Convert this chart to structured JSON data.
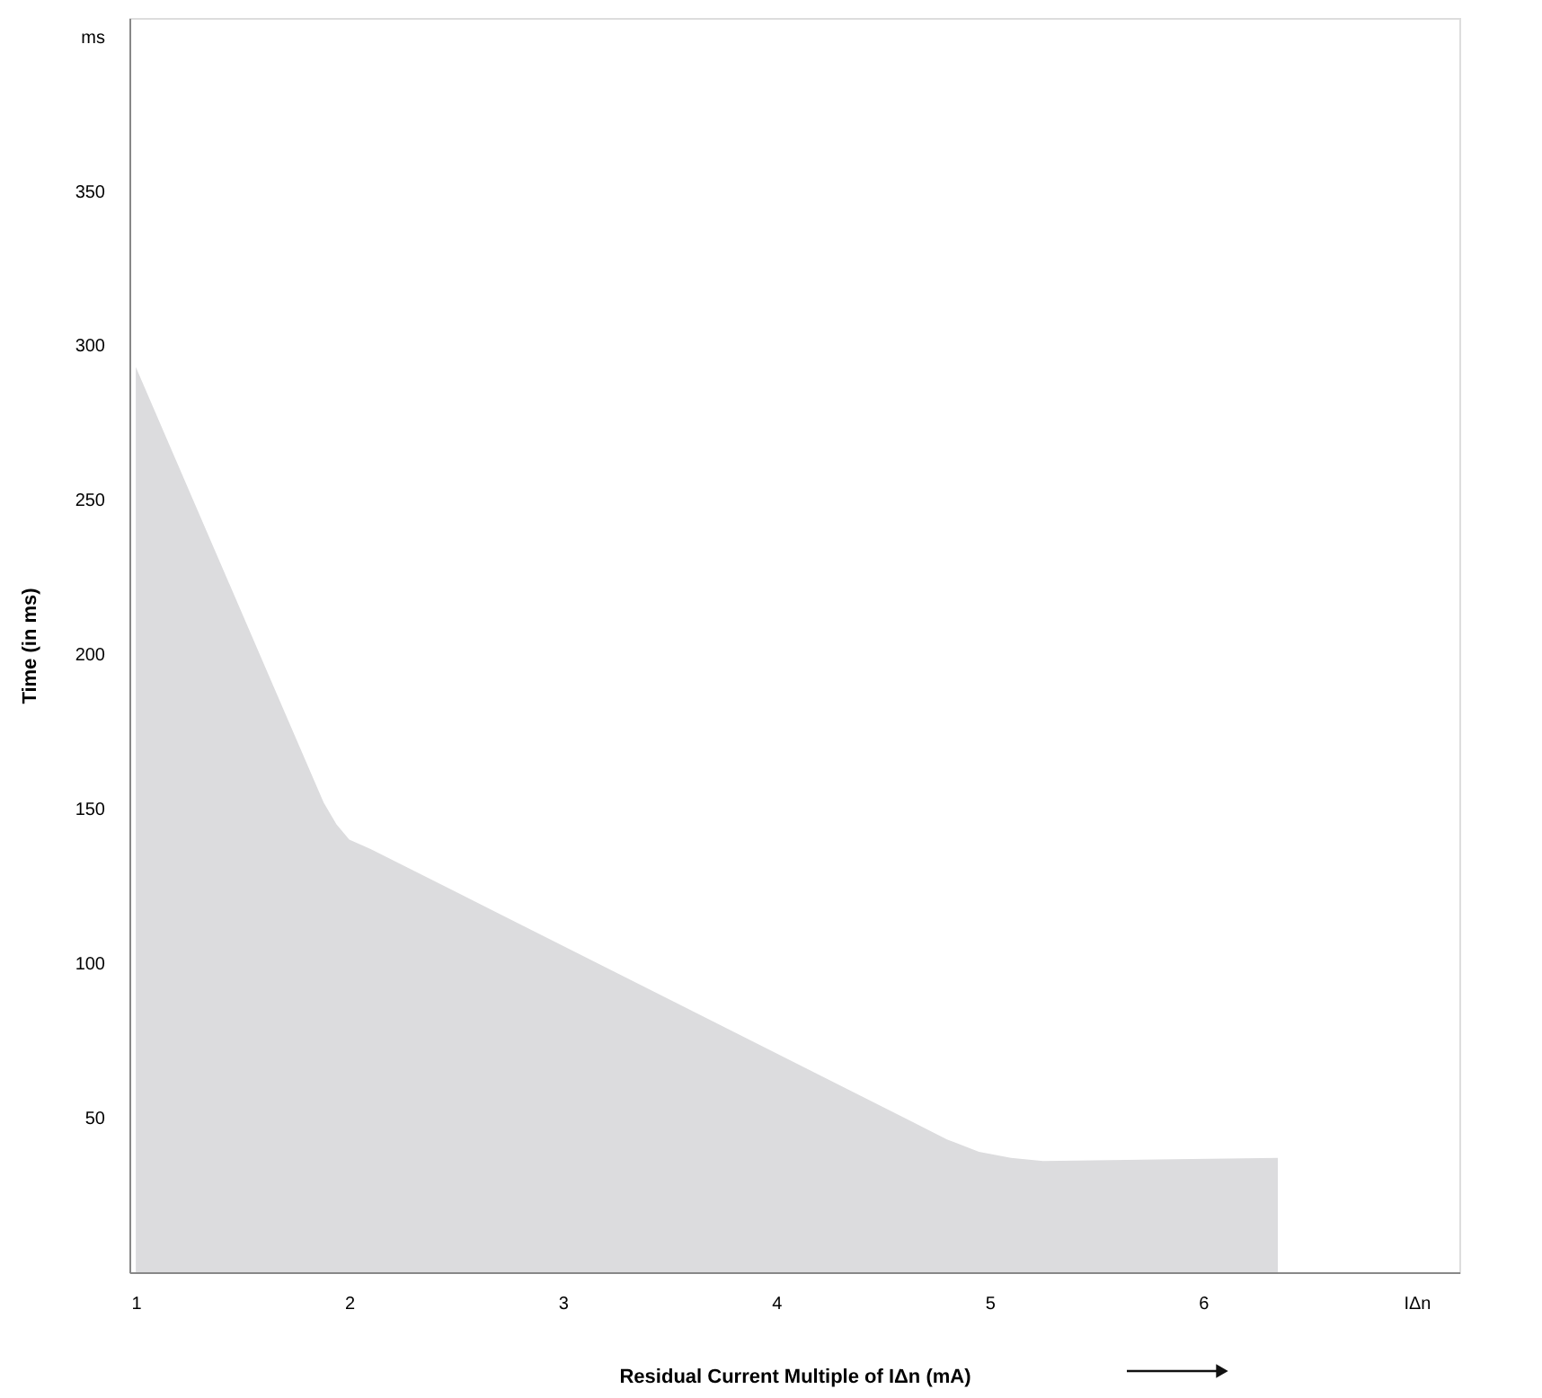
{
  "chart_data": {
    "type": "area",
    "xlabel": "Residual Current Multiple of IΔn (mA)",
    "ylabel": "Time (in ms)",
    "x": [
      1,
      1.88,
      1.94,
      2.0,
      2.1,
      4.8,
      4.95,
      5.1,
      5.25,
      6.35
    ],
    "series": [
      {
        "color": "#dcdcde",
        "values": [
          293,
          152,
          145,
          140,
          137,
          43,
          39,
          37,
          36,
          37
        ]
      }
    ],
    "xlim": [
      0.97,
      7.2
    ],
    "ylim": [
      0,
      406
    ],
    "xticks": [
      1,
      2,
      3,
      4,
      5,
      6,
      {
        "value": 7,
        "label": "IΔn"
      }
    ],
    "yticks": [
      50,
      100,
      150,
      200,
      250,
      300,
      350,
      {
        "value": 400,
        "label": "ms"
      }
    ],
    "grid": false
  }
}
